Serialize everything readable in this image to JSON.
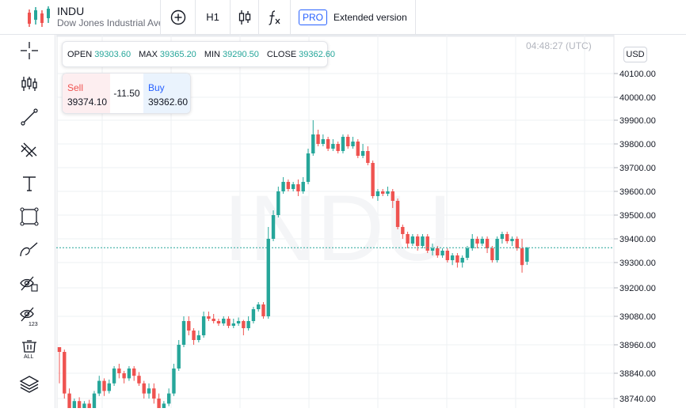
{
  "symbol": {
    "ticker": "INDU",
    "name": "Dow Jones Industrial Average"
  },
  "toolbar": {
    "interval": "H1",
    "pro_badge": "PRO",
    "pro_label": "Extended version"
  },
  "sidebar_tools": [
    "crosshair-icon",
    "indicators-icon",
    "trend-line-icon",
    "fib-icon",
    "text-icon",
    "rectangle-icon",
    "brush-icon",
    "hide-drawings-icon",
    "hide-indicators-icon",
    "remove-all-icon",
    "layers-icon"
  ],
  "ohlc": {
    "open_label": "OPEN",
    "open": "39303.60",
    "max_label": "MAX",
    "max": "39365.20",
    "min_label": "MIN",
    "min": "39290.50",
    "close_label": "CLOSE",
    "close": "39362.60"
  },
  "trade": {
    "sell_label": "Sell",
    "sell_price": "39374.10",
    "spread": "-11.50",
    "buy_label": "Buy",
    "buy_price": "39362.60"
  },
  "chart_header": {
    "time": "04:48:27 (UTC)",
    "currency": "USD",
    "watermark": "INDU"
  },
  "colors": {
    "up": "#26a69a",
    "down": "#ef5350",
    "price_line": "#26a69a",
    "accent": "#2962ff"
  },
  "chart_data": {
    "type": "candlestick",
    "y_ticks": [
      "40100.00",
      "40000.00",
      "39900.00",
      "39800.00",
      "39700.00",
      "39600.00",
      "39500.00",
      "39400.00",
      "39300.00",
      "39200.00",
      "39080.00",
      "38960.00",
      "38840.00",
      "38740.00"
    ],
    "current_price": 39362.6,
    "candles": [
      [
        38950,
        38930,
        38950,
        38800
      ],
      [
        38930,
        38760,
        38940,
        38740
      ],
      [
        38760,
        38700,
        38780,
        38690
      ],
      [
        38700,
        38730,
        38740,
        38690
      ],
      [
        38730,
        38700,
        38745,
        38690
      ],
      [
        38700,
        38720,
        38730,
        38690
      ],
      [
        38720,
        38700,
        38735,
        38690
      ],
      [
        38700,
        38760,
        38770,
        38690
      ],
      [
        38760,
        38810,
        38830,
        38750
      ],
      [
        38810,
        38770,
        38820,
        38750
      ],
      [
        38770,
        38800,
        38815,
        38760
      ],
      [
        38800,
        38860,
        38870,
        38790
      ],
      [
        38860,
        38840,
        38880,
        38820
      ],
      [
        38840,
        38820,
        38850,
        38800
      ],
      [
        38820,
        38860,
        38870,
        38810
      ],
      [
        38860,
        38830,
        38870,
        38810
      ],
      [
        38830,
        38800,
        38845,
        38790
      ],
      [
        38800,
        38760,
        38810,
        38740
      ],
      [
        38760,
        38780,
        38800,
        38740
      ],
      [
        38780,
        38740,
        38800,
        38720
      ],
      [
        38740,
        38700,
        38760,
        38690
      ],
      [
        38700,
        38720,
        38730,
        38690
      ],
      [
        38720,
        38760,
        38780,
        38710
      ],
      [
        38760,
        38860,
        38880,
        38750
      ],
      [
        38860,
        38960,
        38980,
        38850
      ],
      [
        38960,
        39060,
        39080,
        38950
      ],
      [
        39060,
        39020,
        39080,
        39000
      ],
      [
        39020,
        38980,
        39030,
        38960
      ],
      [
        38980,
        39000,
        39020,
        38970
      ],
      [
        39000,
        39080,
        39100,
        38990
      ],
      [
        39080,
        39070,
        39100,
        39060
      ],
      [
        39070,
        39060,
        39090,
        39050
      ],
      [
        39060,
        39050,
        39070,
        39040
      ],
      [
        39050,
        39070,
        39080,
        39040
      ],
      [
        39070,
        39040,
        39080,
        39030
      ],
      [
        39040,
        39050,
        39070,
        39030
      ],
      [
        39050,
        39060,
        39075,
        39040
      ],
      [
        39060,
        39030,
        39065,
        39000
      ],
      [
        39030,
        39060,
        39080,
        39020
      ],
      [
        39060,
        39110,
        39120,
        39050
      ],
      [
        39110,
        39130,
        39140,
        39100
      ],
      [
        39130,
        39080,
        39140,
        39070
      ],
      [
        39080,
        39400,
        39450,
        39070
      ],
      [
        39400,
        39500,
        39520,
        39390
      ],
      [
        39500,
        39600,
        39620,
        39490
      ],
      [
        39600,
        39640,
        39660,
        39590
      ],
      [
        39640,
        39610,
        39650,
        39600
      ],
      [
        39610,
        39630,
        39640,
        39600
      ],
      [
        39630,
        39600,
        39650,
        39580
      ],
      [
        39600,
        39640,
        39660,
        39590
      ],
      [
        39640,
        39760,
        39780,
        39630
      ],
      [
        39760,
        39840,
        39900,
        39750
      ],
      [
        39840,
        39800,
        39860,
        39790
      ],
      [
        39800,
        39820,
        39840,
        39790
      ],
      [
        39820,
        39780,
        39830,
        39770
      ],
      [
        39780,
        39800,
        39820,
        39770
      ],
      [
        39800,
        39770,
        39810,
        39760
      ],
      [
        39770,
        39830,
        39840,
        39760
      ],
      [
        39830,
        39790,
        39840,
        39780
      ],
      [
        39790,
        39810,
        39830,
        39780
      ],
      [
        39810,
        39750,
        39820,
        39740
      ],
      [
        39750,
        39770,
        39800,
        39740
      ],
      [
        39770,
        39720,
        39790,
        39710
      ],
      [
        39720,
        39580,
        39730,
        39570
      ],
      [
        39580,
        39600,
        39610,
        39560
      ],
      [
        39600,
        39590,
        39610,
        39580
      ],
      [
        39590,
        39600,
        39620,
        39580
      ],
      [
        39600,
        39560,
        39610,
        39530
      ],
      [
        39560,
        39450,
        39570,
        39440
      ],
      [
        39450,
        39420,
        39460,
        39400
      ],
      [
        39420,
        39380,
        39430,
        39360
      ],
      [
        39380,
        39410,
        39420,
        39370
      ],
      [
        39410,
        39370,
        39420,
        39350
      ],
      [
        39370,
        39410,
        39420,
        39360
      ],
      [
        39410,
        39350,
        39420,
        39340
      ],
      [
        39350,
        39360,
        39380,
        39330
      ],
      [
        39360,
        39330,
        39370,
        39320
      ],
      [
        39330,
        39350,
        39360,
        39320
      ],
      [
        39350,
        39310,
        39360,
        39300
      ],
      [
        39310,
        39330,
        39340,
        39290
      ],
      [
        39330,
        39300,
        39340,
        39280
      ],
      [
        39300,
        39320,
        39330,
        39280
      ],
      [
        39320,
        39360,
        39370,
        39310
      ],
      [
        39360,
        39400,
        39420,
        39350
      ],
      [
        39400,
        39380,
        39410,
        39360
      ],
      [
        39380,
        39400,
        39410,
        39370
      ],
      [
        39400,
        39360,
        39410,
        39340
      ],
      [
        39360,
        39310,
        39370,
        39300
      ],
      [
        39310,
        39400,
        39410,
        39300
      ],
      [
        39400,
        39420,
        39430,
        39380
      ],
      [
        39420,
        39390,
        39430,
        39380
      ],
      [
        39390,
        39400,
        39410,
        39370
      ],
      [
        39400,
        39360,
        39410,
        39350
      ],
      [
        39360,
        39290,
        39400,
        39260
      ],
      [
        39303.6,
        39362.6,
        39365.2,
        39290.5
      ]
    ]
  }
}
